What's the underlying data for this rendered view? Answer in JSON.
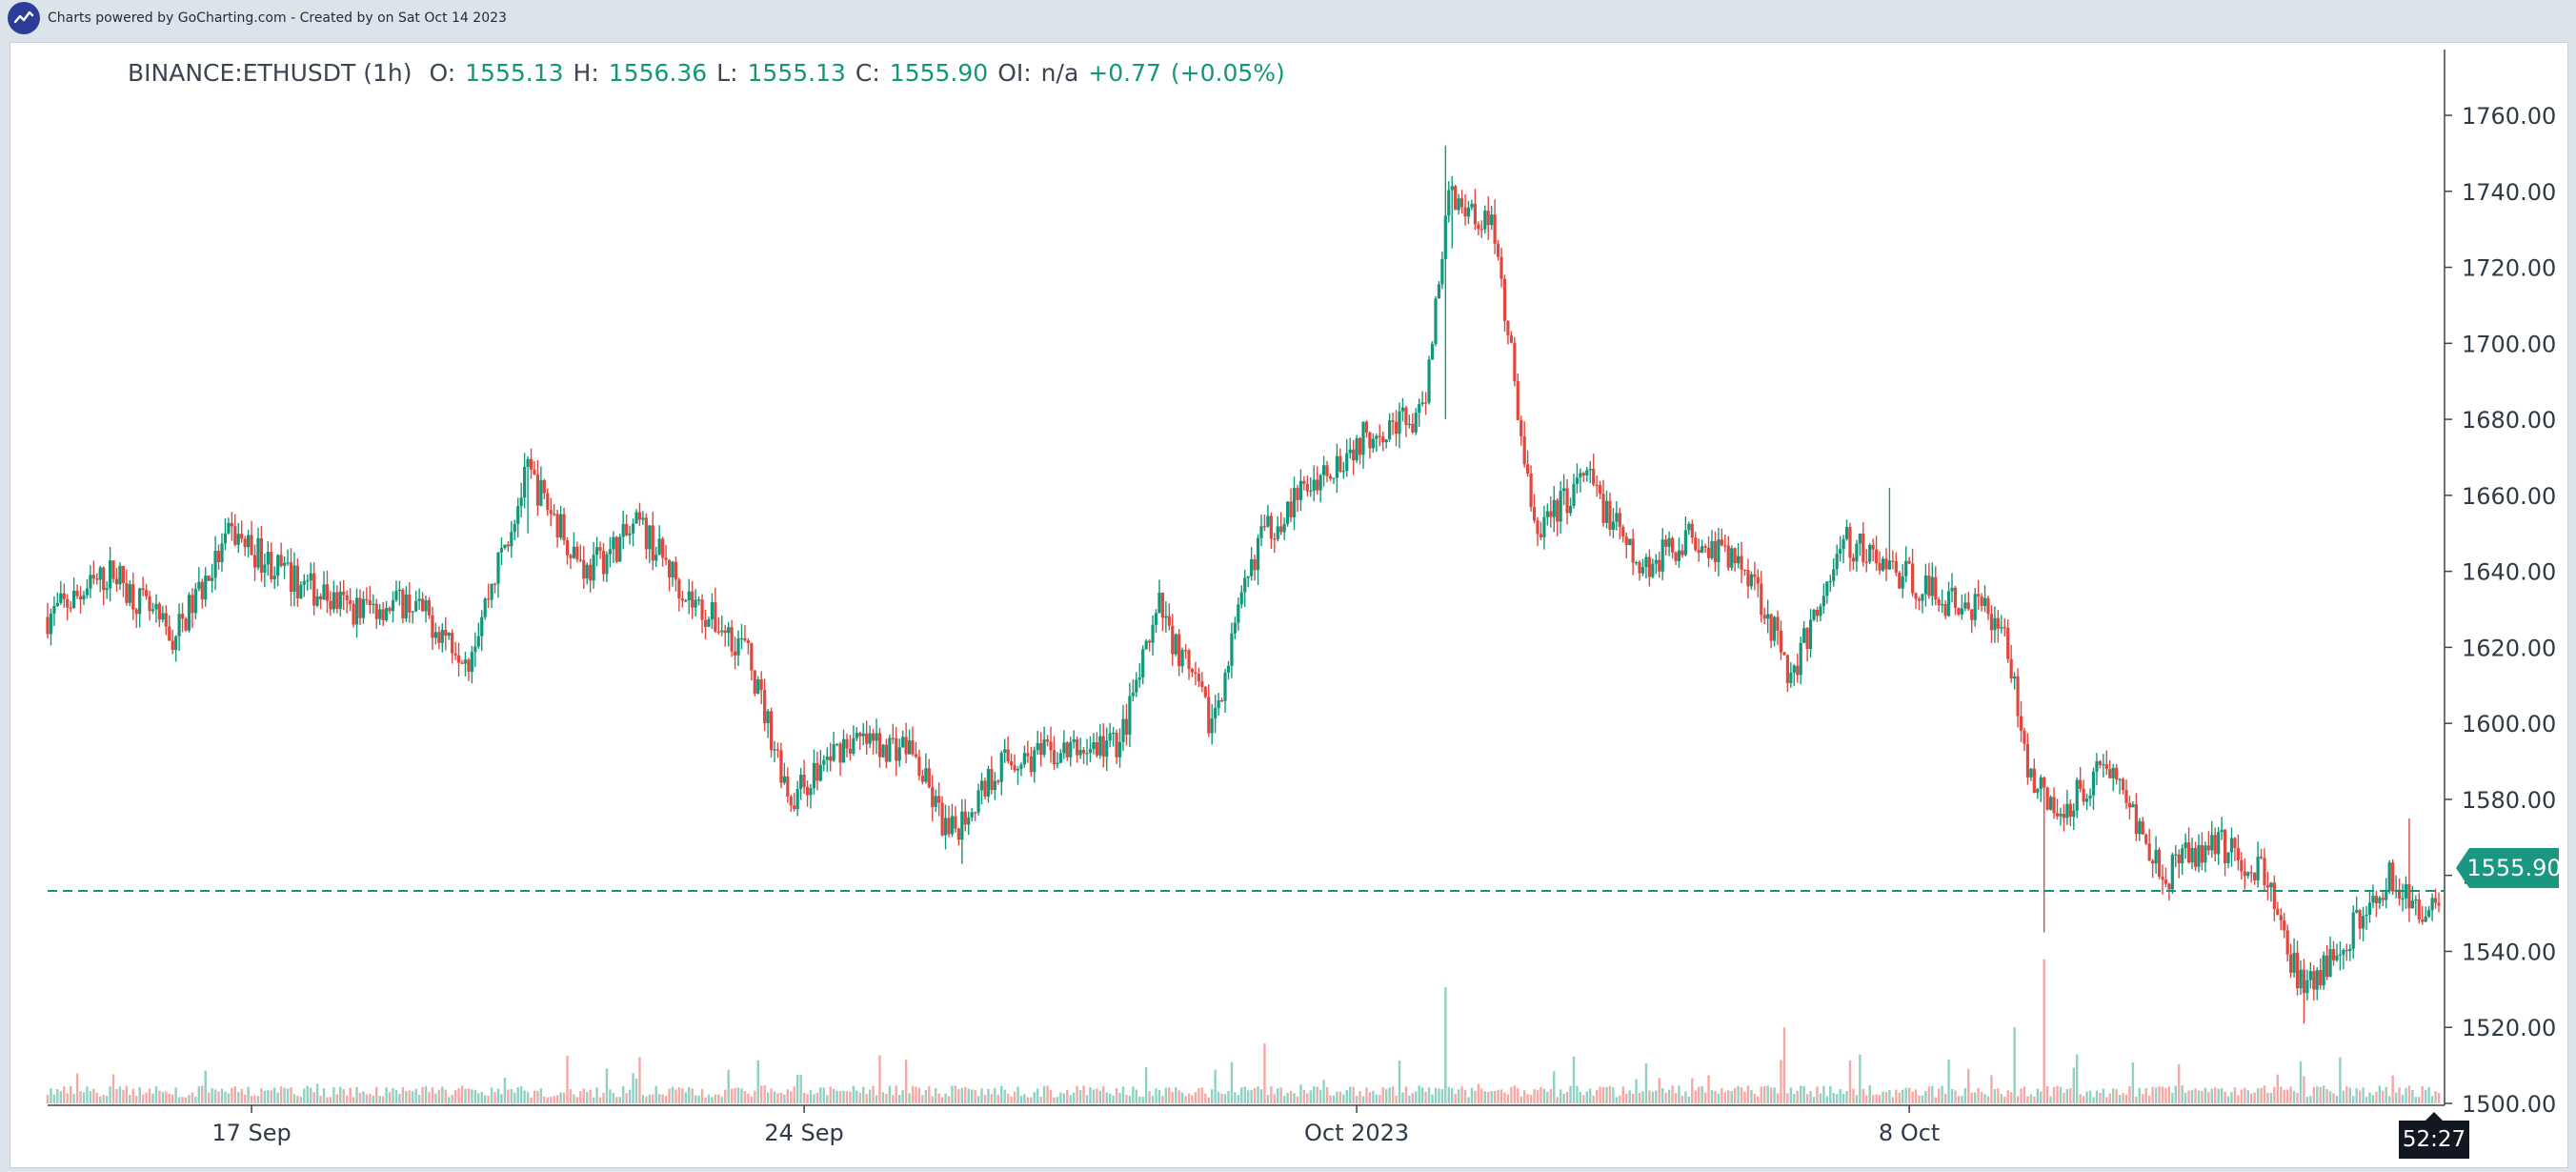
{
  "header": {
    "credits": "Charts powered by GoCharting.com - Created by  on Sat Oct 14 2023"
  },
  "legend": {
    "symbol": "BINANCE:ETHUSDT (1h)",
    "open_label": "O:",
    "open": "1555.13",
    "high_label": "H:",
    "high": "1556.36",
    "low_label": "L:",
    "low": "1555.13",
    "close_label": "C:",
    "close": "1555.90",
    "oi_label": "OI:",
    "oi": "n/a",
    "change": "+0.77",
    "change_pct": "(+0.05%)"
  },
  "current_price": "1555.90",
  "countdown": "52:27",
  "colors": {
    "up": "#11987a",
    "down": "#e0473f",
    "volume_up": "#8fd1c3",
    "volume_down": "#f4a9a4"
  },
  "chart_data": {
    "type": "candlestick",
    "symbol": "BINANCE:ETHUSDT",
    "interval": "1h",
    "ylim": [
      1500,
      1770
    ],
    "y_ticks": [
      "1760.00",
      "1740.00",
      "1720.00",
      "1700.00",
      "1680.00",
      "1660.00",
      "1640.00",
      "1620.00",
      "1600.00",
      "1580.00",
      "1560.00",
      "1540.00",
      "1520.00",
      "1500.00"
    ],
    "y_tick_values": [
      1760,
      1740,
      1720,
      1700,
      1680,
      1660,
      1640,
      1620,
      1600,
      1580,
      1560,
      1540,
      1520,
      1500
    ],
    "x_ticks": [
      "17 Sep",
      "24 Sep",
      "Oct 2023",
      "8 Oct"
    ],
    "x_tick_dates": [
      "2023-09-17",
      "2023-09-24",
      "2023-10-01",
      "2023-10-08"
    ],
    "x_range": [
      "2023-09-14T10:00",
      "2023-10-14T17:00"
    ],
    "last_price": 1555.9,
    "close_path": [
      {
        "date": "2023-09-14T10:00",
        "close": 1628
      },
      {
        "date": "2023-09-15T06:00",
        "close": 1640
      },
      {
        "date": "2023-09-16T00:00",
        "close": 1622
      },
      {
        "date": "2023-09-16T18:00",
        "close": 1650
      },
      {
        "date": "2023-09-17T12:00",
        "close": 1638
      },
      {
        "date": "2023-09-18T06:00",
        "close": 1630
      },
      {
        "date": "2023-09-19T00:00",
        "close": 1632
      },
      {
        "date": "2023-09-19T18:00",
        "close": 1618
      },
      {
        "date": "2023-09-20T12:00",
        "close": 1666
      },
      {
        "date": "2023-09-21T06:00",
        "close": 1640
      },
      {
        "date": "2023-09-21T22:00",
        "close": 1652
      },
      {
        "date": "2023-09-22T14:00",
        "close": 1632
      },
      {
        "date": "2023-09-23T06:00",
        "close": 1620
      },
      {
        "date": "2023-09-23T20:00",
        "close": 1580
      },
      {
        "date": "2023-09-24T12:00",
        "close": 1595
      },
      {
        "date": "2023-09-25T08:00",
        "close": 1594
      },
      {
        "date": "2023-09-25T20:00",
        "close": 1570
      },
      {
        "date": "2023-09-26T12:00",
        "close": 1590
      },
      {
        "date": "2023-09-27T06:00",
        "close": 1592
      },
      {
        "date": "2023-09-28T00:00",
        "close": 1595
      },
      {
        "date": "2023-09-28T12:00",
        "close": 1630
      },
      {
        "date": "2023-09-29T04:00",
        "close": 1600
      },
      {
        "date": "2023-09-29T18:00",
        "close": 1648
      },
      {
        "date": "2023-09-30T12:00",
        "close": 1665
      },
      {
        "date": "2023-10-01T06:00",
        "close": 1678
      },
      {
        "date": "2023-10-01T20:00",
        "close": 1680
      },
      {
        "date": "2023-10-02T04:00",
        "close": 1740
      },
      {
        "date": "2023-10-02T18:00",
        "close": 1730
      },
      {
        "date": "2023-10-03T06:00",
        "close": 1650
      },
      {
        "date": "2023-10-03T22:00",
        "close": 1665
      },
      {
        "date": "2023-10-04T14:00",
        "close": 1640
      },
      {
        "date": "2023-10-05T06:00",
        "close": 1650
      },
      {
        "date": "2023-10-06T00:00",
        "close": 1640
      },
      {
        "date": "2023-10-06T12:00",
        "close": 1612
      },
      {
        "date": "2023-10-07T04:00",
        "close": 1648
      },
      {
        "date": "2023-10-07T20:00",
        "close": 1640
      },
      {
        "date": "2023-10-08T12:00",
        "close": 1632
      },
      {
        "date": "2023-10-09T04:00",
        "close": 1628
      },
      {
        "date": "2023-10-09T12:00",
        "close": 1590
      },
      {
        "date": "2023-10-09T20:00",
        "close": 1575
      },
      {
        "date": "2023-10-10T12:00",
        "close": 1590
      },
      {
        "date": "2023-10-11T06:00",
        "close": 1560
      },
      {
        "date": "2023-10-11T20:00",
        "close": 1570
      },
      {
        "date": "2023-10-12T12:00",
        "close": 1560
      },
      {
        "date": "2023-10-13T00:00",
        "close": 1528
      },
      {
        "date": "2023-10-13T14:00",
        "close": 1545
      },
      {
        "date": "2023-10-14T02:00",
        "close": 1560
      },
      {
        "date": "2023-10-14T10:00",
        "close": 1550
      },
      {
        "date": "2023-10-14T17:00",
        "close": 1555.9
      }
    ],
    "volume_spikes": [
      {
        "date": "2023-10-02T03:00",
        "rel": 0.58
      },
      {
        "date": "2023-10-09T17:00",
        "rel": 0.72
      },
      {
        "date": "2023-10-09T08:00",
        "rel": 0.38
      },
      {
        "date": "2023-10-06T10:00",
        "rel": 0.38
      },
      {
        "date": "2023-09-29T20:00",
        "rel": 0.3
      }
    ],
    "grid": false,
    "volume_pane": true
  }
}
